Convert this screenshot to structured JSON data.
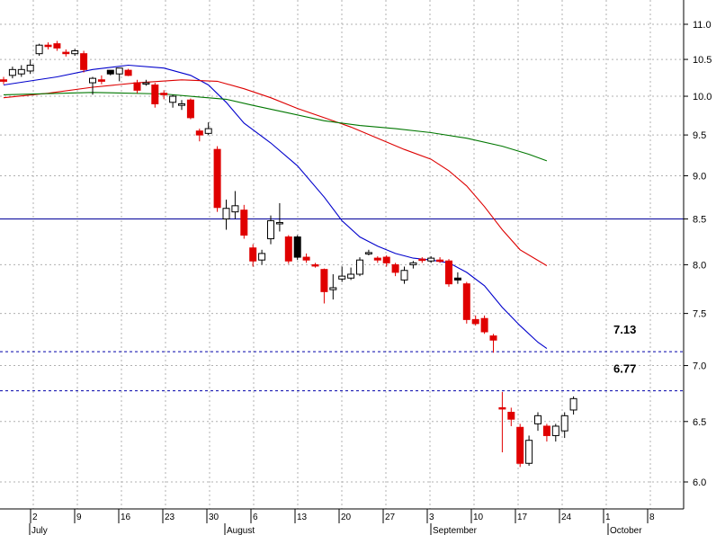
{
  "chart_data": {
    "type": "candlestick",
    "y_scale": "log",
    "ylim": [
      5.75,
      11.3
    ],
    "y_ticks": [
      "11.0",
      "10.5",
      "10.0",
      "9.5",
      "9.0",
      "8.5",
      "8.0",
      "7.5",
      "7.0",
      "6.5",
      "6.0"
    ],
    "day_labels": [
      "2",
      "9",
      "16",
      "23",
      "30",
      "6",
      "13",
      "20",
      "27",
      "3",
      "10",
      "17",
      "24",
      "1",
      "8"
    ],
    "month_labels": [
      "July",
      "August",
      "September",
      "October"
    ],
    "grid": true,
    "candles": [
      {
        "o": 10.2,
        "h": 10.26,
        "l": 10.16,
        "c": 10.22,
        "color": "red"
      },
      {
        "o": 10.28,
        "h": 10.4,
        "l": 10.24,
        "c": 10.36,
        "color": "white"
      },
      {
        "o": 10.3,
        "h": 10.42,
        "l": 10.26,
        "c": 10.36,
        "color": "white"
      },
      {
        "o": 10.34,
        "h": 10.5,
        "l": 10.3,
        "c": 10.42,
        "color": "white"
      },
      {
        "o": 10.58,
        "h": 10.72,
        "l": 10.55,
        "c": 10.7,
        "color": "white"
      },
      {
        "o": 10.68,
        "h": 10.74,
        "l": 10.64,
        "c": 10.7,
        "color": "red"
      },
      {
        "o": 10.72,
        "h": 10.76,
        "l": 10.62,
        "c": 10.66,
        "color": "red"
      },
      {
        "o": 10.6,
        "h": 10.64,
        "l": 10.54,
        "c": 10.58,
        "color": "red"
      },
      {
        "o": 10.58,
        "h": 10.65,
        "l": 10.55,
        "c": 10.62,
        "color": "white"
      },
      {
        "o": 10.58,
        "h": 10.62,
        "l": 10.32,
        "c": 10.36,
        "color": "red"
      },
      {
        "o": 10.18,
        "h": 10.26,
        "l": 10.02,
        "c": 10.24,
        "color": "white"
      },
      {
        "o": 10.22,
        "h": 10.28,
        "l": 10.16,
        "c": 10.2,
        "color": "red"
      },
      {
        "o": 10.3,
        "h": 10.35,
        "l": 10.28,
        "c": 10.35,
        "color": "black"
      },
      {
        "o": 10.3,
        "h": 10.37,
        "l": 10.2,
        "c": 10.38,
        "color": "white"
      },
      {
        "o": 10.35,
        "h": 10.37,
        "l": 10.27,
        "c": 10.28,
        "color": "red"
      },
      {
        "o": 10.18,
        "h": 10.22,
        "l": 10.04,
        "c": 10.08,
        "color": "red"
      },
      {
        "o": 10.18,
        "h": 10.22,
        "l": 10.14,
        "c": 10.18,
        "color": "white"
      },
      {
        "o": 10.15,
        "h": 10.18,
        "l": 9.85,
        "c": 9.9,
        "color": "red"
      },
      {
        "o": 10.02,
        "h": 10.08,
        "l": 9.96,
        "c": 10.04,
        "color": "red"
      },
      {
        "o": 9.92,
        "h": 10.02,
        "l": 9.85,
        "c": 10.0,
        "color": "white"
      },
      {
        "o": 9.9,
        "h": 9.95,
        "l": 9.82,
        "c": 9.88,
        "color": "white"
      },
      {
        "o": 9.95,
        "h": 9.97,
        "l": 9.7,
        "c": 9.72,
        "color": "red"
      },
      {
        "o": 9.55,
        "h": 9.58,
        "l": 9.42,
        "c": 9.5,
        "color": "red"
      },
      {
        "o": 9.52,
        "h": 9.66,
        "l": 9.5,
        "c": 9.58,
        "color": "white"
      },
      {
        "o": 9.32,
        "h": 9.36,
        "l": 8.58,
        "c": 8.63,
        "color": "red"
      },
      {
        "o": 8.5,
        "h": 8.72,
        "l": 8.38,
        "c": 8.62,
        "color": "white"
      },
      {
        "o": 8.58,
        "h": 8.82,
        "l": 8.5,
        "c": 8.65,
        "color": "white"
      },
      {
        "o": 8.6,
        "h": 8.66,
        "l": 8.28,
        "c": 8.32,
        "color": "red"
      },
      {
        "o": 8.18,
        "h": 8.22,
        "l": 7.98,
        "c": 8.04,
        "color": "red"
      },
      {
        "o": 8.05,
        "h": 8.16,
        "l": 8.0,
        "c": 8.12,
        "color": "white"
      },
      {
        "o": 8.28,
        "h": 8.54,
        "l": 8.22,
        "c": 8.48,
        "color": "white"
      },
      {
        "o": 8.45,
        "h": 8.68,
        "l": 8.36,
        "c": 8.46,
        "color": "white"
      },
      {
        "o": 8.3,
        "h": 8.32,
        "l": 8.01,
        "c": 8.04,
        "color": "red"
      },
      {
        "o": 8.3,
        "h": 8.32,
        "l": 8.05,
        "c": 8.08,
        "color": "black"
      },
      {
        "o": 8.08,
        "h": 8.12,
        "l": 8.02,
        "c": 8.05,
        "color": "red"
      },
      {
        "o": 8.0,
        "h": 8.02,
        "l": 7.97,
        "c": 7.99,
        "color": "red"
      },
      {
        "o": 7.95,
        "h": 7.96,
        "l": 7.6,
        "c": 7.72,
        "color": "red"
      },
      {
        "o": 7.74,
        "h": 7.9,
        "l": 7.64,
        "c": 7.76,
        "color": "white"
      },
      {
        "o": 7.85,
        "h": 7.98,
        "l": 7.82,
        "c": 7.88,
        "color": "white"
      },
      {
        "o": 7.86,
        "h": 7.97,
        "l": 7.84,
        "c": 7.9,
        "color": "white"
      },
      {
        "o": 7.9,
        "h": 8.08,
        "l": 7.88,
        "c": 8.05,
        "color": "white"
      },
      {
        "o": 8.12,
        "h": 8.16,
        "l": 8.1,
        "c": 8.13,
        "color": "white"
      },
      {
        "o": 8.05,
        "h": 8.09,
        "l": 8.02,
        "c": 8.07,
        "color": "red"
      },
      {
        "o": 8.08,
        "h": 8.1,
        "l": 7.98,
        "c": 8.02,
        "color": "red"
      },
      {
        "o": 8.0,
        "h": 8.02,
        "l": 7.88,
        "c": 7.92,
        "color": "red"
      },
      {
        "o": 7.84,
        "h": 7.98,
        "l": 7.8,
        "c": 7.94,
        "color": "white"
      },
      {
        "o": 8.0,
        "h": 8.04,
        "l": 7.96,
        "c": 8.02,
        "color": "white"
      },
      {
        "o": 8.05,
        "h": 8.08,
        "l": 8.02,
        "c": 8.06,
        "color": "red"
      },
      {
        "o": 8.04,
        "h": 8.09,
        "l": 8.02,
        "c": 8.07,
        "color": "white"
      },
      {
        "o": 8.04,
        "h": 8.08,
        "l": 8.02,
        "c": 8.05,
        "color": "red"
      },
      {
        "o": 8.04,
        "h": 8.06,
        "l": 7.77,
        "c": 7.8,
        "color": "red"
      },
      {
        "o": 7.84,
        "h": 7.92,
        "l": 7.8,
        "c": 7.86,
        "color": "black"
      },
      {
        "o": 7.8,
        "h": 7.82,
        "l": 7.4,
        "c": 7.44,
        "color": "red"
      },
      {
        "o": 7.44,
        "h": 7.48,
        "l": 7.38,
        "c": 7.4,
        "color": "red"
      },
      {
        "o": 7.45,
        "h": 7.48,
        "l": 7.3,
        "c": 7.32,
        "color": "red"
      },
      {
        "o": 7.28,
        "h": 7.3,
        "l": 7.12,
        "c": 7.24,
        "color": "red"
      },
      {
        "o": 6.62,
        "h": 6.76,
        "l": 6.24,
        "c": 6.62,
        "color": "red"
      },
      {
        "o": 6.58,
        "h": 6.62,
        "l": 6.46,
        "c": 6.52,
        "color": "red"
      },
      {
        "o": 6.45,
        "h": 6.48,
        "l": 6.12,
        "c": 6.15,
        "color": "red"
      },
      {
        "o": 6.15,
        "h": 6.38,
        "l": 6.13,
        "c": 6.34,
        "color": "white"
      },
      {
        "o": 6.48,
        "h": 6.58,
        "l": 6.42,
        "c": 6.55,
        "color": "white"
      },
      {
        "o": 6.46,
        "h": 6.48,
        "l": 6.33,
        "c": 6.38,
        "color": "red"
      },
      {
        "o": 6.38,
        "h": 6.48,
        "l": 6.33,
        "c": 6.46,
        "color": "white"
      },
      {
        "o": 6.42,
        "h": 6.58,
        "l": 6.36,
        "c": 6.55,
        "color": "white"
      },
      {
        "o": 6.6,
        "h": 6.72,
        "l": 6.56,
        "c": 6.7,
        "color": "white"
      }
    ],
    "moving_averages": [
      {
        "color": "#0000cc",
        "values": [
          [
            0,
            10.15
          ],
          [
            6,
            10.26
          ],
          [
            10,
            10.36
          ],
          [
            14,
            10.42
          ],
          [
            18,
            10.38
          ],
          [
            21,
            10.28
          ],
          [
            23,
            10.15
          ],
          [
            25,
            9.92
          ],
          [
            27,
            9.65
          ],
          [
            30,
            9.4
          ],
          [
            33,
            9.12
          ],
          [
            36,
            8.75
          ],
          [
            38,
            8.48
          ],
          [
            40,
            8.3
          ],
          [
            42,
            8.2
          ],
          [
            44,
            8.12
          ],
          [
            46,
            8.07
          ],
          [
            48,
            8.05
          ],
          [
            50,
            8.02
          ],
          [
            52,
            7.92
          ],
          [
            54,
            7.78
          ],
          [
            56,
            7.56
          ],
          [
            58,
            7.38
          ],
          [
            60,
            7.22
          ],
          [
            61,
            7.16
          ]
        ]
      },
      {
        "color": "#dd0000",
        "values": [
          [
            0,
            9.98
          ],
          [
            5,
            10.04
          ],
          [
            10,
            10.12
          ],
          [
            15,
            10.18
          ],
          [
            20,
            10.22
          ],
          [
            24,
            10.2
          ],
          [
            27,
            10.1
          ],
          [
            30,
            9.98
          ],
          [
            33,
            9.84
          ],
          [
            36,
            9.72
          ],
          [
            39,
            9.6
          ],
          [
            42,
            9.46
          ],
          [
            45,
            9.32
          ],
          [
            48,
            9.2
          ],
          [
            50,
            9.06
          ],
          [
            52,
            8.88
          ],
          [
            54,
            8.64
          ],
          [
            56,
            8.38
          ],
          [
            58,
            8.16
          ],
          [
            61,
            7.99
          ]
        ]
      },
      {
        "color": "#007700",
        "values": [
          [
            0,
            10.02
          ],
          [
            10,
            10.05
          ],
          [
            18,
            10.03
          ],
          [
            22,
            9.99
          ],
          [
            25,
            9.96
          ],
          [
            28,
            9.88
          ],
          [
            32,
            9.78
          ],
          [
            36,
            9.68
          ],
          [
            40,
            9.62
          ],
          [
            44,
            9.58
          ],
          [
            48,
            9.53
          ],
          [
            52,
            9.46
          ],
          [
            56,
            9.36
          ],
          [
            59,
            9.26
          ],
          [
            61,
            9.18
          ]
        ]
      }
    ],
    "hlines": [
      {
        "y": 8.5,
        "color": "#000099",
        "style": "solid"
      },
      {
        "y": 7.13,
        "color": "#0000aa",
        "style": "dashed"
      },
      {
        "y": 6.77,
        "color": "#0000aa",
        "style": "dashed"
      }
    ],
    "annotations": [
      {
        "text": "7.13",
        "y": 7.13
      },
      {
        "text": "6.77",
        "y": 6.77
      }
    ]
  }
}
